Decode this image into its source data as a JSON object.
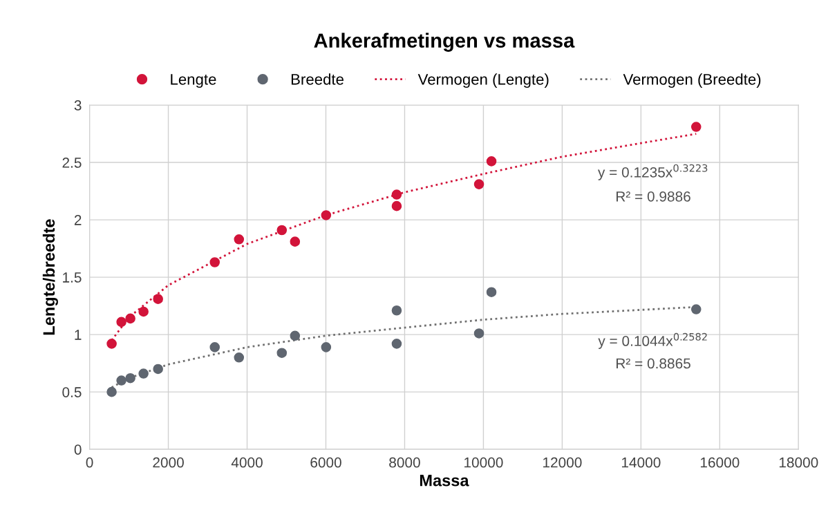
{
  "chart_data": {
    "type": "scatter",
    "title": "Ankerafmetingen vs massa",
    "xlabel": "Massa",
    "ylabel": "Lengte/breedte",
    "xlim": [
      0,
      18000
    ],
    "xticks": [
      0,
      2000,
      4000,
      6000,
      8000,
      10000,
      12000,
      14000,
      16000,
      18000
    ],
    "ylim": [
      0,
      3
    ],
    "yticks": [
      0,
      0.5,
      1,
      1.5,
      2,
      2.5,
      3
    ],
    "grid": true,
    "legend": "top",
    "series": [
      {
        "name": "Lengte",
        "marker": "circle",
        "color": "#d2143a",
        "x": [
          562,
          808,
          1036,
          1370,
          1739,
          3179,
          3794,
          4882,
          5216,
          6006,
          7798,
          7798,
          9888,
          10204,
          15402
        ],
        "values": [
          0.92,
          1.11,
          1.14,
          1.2,
          1.31,
          1.63,
          1.83,
          1.91,
          1.81,
          2.04,
          2.22,
          2.12,
          2.31,
          2.51,
          2.81
        ]
      },
      {
        "name": "Breedte",
        "marker": "circle",
        "color": "#5f6670",
        "x": [
          562,
          808,
          1036,
          1370,
          1739,
          3179,
          3794,
          4882,
          5216,
          6006,
          7798,
          7798,
          9888,
          10204,
          15402
        ],
        "values": [
          0.5,
          0.6,
          0.62,
          0.66,
          0.7,
          0.89,
          0.8,
          0.84,
          0.99,
          0.89,
          1.21,
          0.92,
          1.01,
          1.37,
          1.22
        ]
      },
      {
        "name": "Vermogen (Lengte)",
        "type": "line",
        "line_style": "dotted",
        "color": "#d2143a",
        "x": [
          562,
          1000,
          2000,
          4000,
          6000,
          8000,
          10000,
          12000,
          15402
        ],
        "values": [
          0.95,
          1.15,
          1.43,
          1.79,
          2.04,
          2.24,
          2.4,
          2.55,
          2.75
        ]
      },
      {
        "name": "Vermogen (Breedte)",
        "type": "line",
        "line_style": "dotted",
        "color": "#707070",
        "x": [
          562,
          1000,
          2000,
          4000,
          6000,
          8000,
          10000,
          12000,
          15402
        ],
        "values": [
          0.54,
          0.62,
          0.74,
          0.89,
          0.99,
          1.06,
          1.13,
          1.18,
          1.24
        ]
      }
    ],
    "annotations": [
      "y = 0.1235x$^{0.3223}$",
      "R² = 0.9886",
      "y = 0.1044x$^{0.2582}$",
      "R² = 0.8865"
    ]
  }
}
